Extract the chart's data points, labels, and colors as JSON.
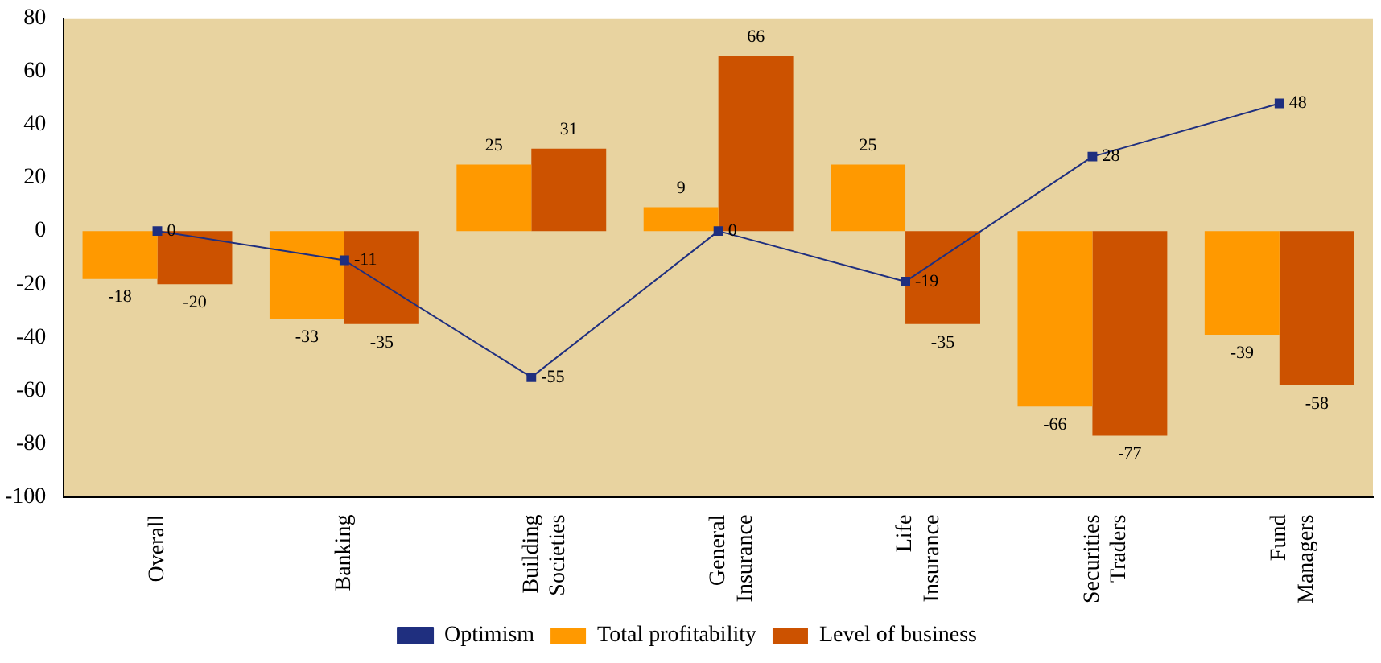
{
  "chart_data": {
    "type": "bar",
    "categories": [
      "Overall",
      "Banking",
      "Building Societies",
      "General Insurance",
      "Life Insurance",
      "Securities Traders",
      "Fund Managers"
    ],
    "series": [
      {
        "name": "Total profitability",
        "color": "#ff9900",
        "values": [
          -18,
          -33,
          25,
          9,
          25,
          -66,
          -39
        ]
      },
      {
        "name": "Level of business",
        "color": "#cc5200",
        "values": [
          -20,
          -35,
          31,
          66,
          -35,
          -77,
          -58
        ]
      },
      {
        "name": "Optimism",
        "type": "line",
        "color": "#1f2f7f",
        "values": [
          0,
          -11,
          -55,
          0,
          -19,
          28,
          48
        ]
      }
    ],
    "ylim": [
      -100,
      80
    ],
    "yticks": [
      -100,
      -80,
      -60,
      -40,
      -20,
      0,
      20,
      40,
      60,
      80
    ],
    "grid": false,
    "legend": "bottom",
    "data_labels": true,
    "marker": "square",
    "line_style": "solid"
  }
}
